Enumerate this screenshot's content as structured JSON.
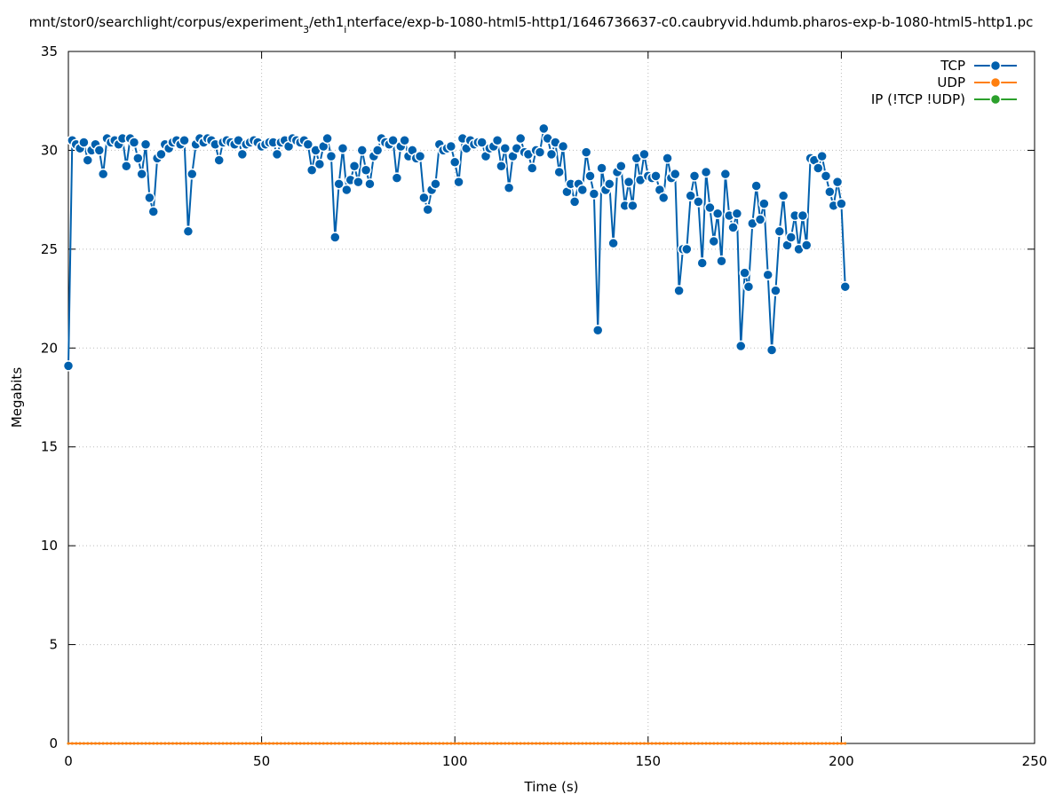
{
  "chart_data": {
    "type": "line",
    "title": [
      "mnt/stor0/searchlight/corpus/experiment",
      "3",
      "/eth1",
      "i",
      "nterface/exp-b-1080-html5-http1/1646736637-c0.caubryvid.hdumb.pharos-exp-b-1080-html5-http1.pc"
    ],
    "xlabel": "Time (s)",
    "ylabel": "Megabits",
    "xlim": [
      0,
      250
    ],
    "xticks": [
      0,
      50,
      100,
      150,
      200,
      250
    ],
    "ylim": [
      0,
      35
    ],
    "yticks": [
      0,
      5,
      10,
      15,
      20,
      25,
      30,
      35
    ],
    "grid": true,
    "legend": "top right",
    "x": [
      0,
      1,
      2,
      3,
      4,
      5,
      6,
      7,
      8,
      9,
      10,
      11,
      12,
      13,
      14,
      15,
      16,
      17,
      18,
      19,
      20,
      21,
      22,
      23,
      24,
      25,
      26,
      27,
      28,
      29,
      30,
      31,
      32,
      33,
      34,
      35,
      36,
      37,
      38,
      39,
      40,
      41,
      42,
      43,
      44,
      45,
      46,
      47,
      48,
      49,
      50,
      51,
      52,
      53,
      54,
      55,
      56,
      57,
      58,
      59,
      60,
      61,
      62,
      63,
      64,
      65,
      66,
      67,
      68,
      69,
      70,
      71,
      72,
      73,
      74,
      75,
      76,
      77,
      78,
      79,
      80,
      81,
      82,
      83,
      84,
      85,
      86,
      87,
      88,
      89,
      90,
      91,
      92,
      93,
      94,
      95,
      96,
      97,
      98,
      99,
      100,
      101,
      102,
      103,
      104,
      105,
      106,
      107,
      108,
      109,
      110,
      111,
      112,
      113,
      114,
      115,
      116,
      117,
      118,
      119,
      120,
      121,
      122,
      123,
      124,
      125,
      126,
      127,
      128,
      129,
      130,
      131,
      132,
      133,
      134,
      135,
      136,
      137,
      138,
      139,
      140,
      141,
      142,
      143,
      144,
      145,
      146,
      147,
      148,
      149,
      150,
      151,
      152,
      153,
      154,
      155,
      156,
      157,
      158,
      159,
      160,
      161,
      162,
      163,
      164,
      165,
      166,
      167,
      168,
      169,
      170,
      171,
      172,
      173,
      174,
      175,
      176,
      177,
      178,
      179,
      180,
      181,
      182,
      183,
      184,
      185,
      186,
      187,
      188,
      189,
      190,
      191,
      192,
      193,
      194,
      195,
      196,
      197,
      198,
      199,
      200,
      201
    ],
    "series": [
      {
        "name": "TCP",
        "color": "#0060ad",
        "marker_size": 5.5,
        "values": [
          19.1,
          30.5,
          30.3,
          30.1,
          30.4,
          29.5,
          30.0,
          30.3,
          30.0,
          28.8,
          30.6,
          30.4,
          30.5,
          30.3,
          30.6,
          29.2,
          30.6,
          30.4,
          29.6,
          28.8,
          30.3,
          27.6,
          26.9,
          29.6,
          29.8,
          30.3,
          30.1,
          30.4,
          30.5,
          30.3,
          30.5,
          25.9,
          28.8,
          30.3,
          30.6,
          30.4,
          30.6,
          30.5,
          30.3,
          29.5,
          30.4,
          30.5,
          30.4,
          30.3,
          30.5,
          29.8,
          30.3,
          30.4,
          30.5,
          30.4,
          30.2,
          30.3,
          30.4,
          30.4,
          29.8,
          30.4,
          30.5,
          30.2,
          30.6,
          30.5,
          30.4,
          30.5,
          30.3,
          29.0,
          30.0,
          29.3,
          30.2,
          30.6,
          29.7,
          25.6,
          28.3,
          30.1,
          28.0,
          28.5,
          29.2,
          28.4,
          30.0,
          29.0,
          28.3,
          29.7,
          30.0,
          30.6,
          30.4,
          30.3,
          30.5,
          28.6,
          30.2,
          30.5,
          29.7,
          30.0,
          29.6,
          29.7,
          27.6,
          27.0,
          28.0,
          28.3,
          30.3,
          30.0,
          30.1,
          30.2,
          29.4,
          28.4,
          30.6,
          30.1,
          30.5,
          30.3,
          30.4,
          30.4,
          29.7,
          30.1,
          30.2,
          30.5,
          29.2,
          30.1,
          28.1,
          29.7,
          30.1,
          30.6,
          29.9,
          29.8,
          29.1,
          30.0,
          29.9,
          31.1,
          30.6,
          29.8,
          30.4,
          28.9,
          30.2,
          27.9,
          28.3,
          27.4,
          28.3,
          28.0,
          29.9,
          28.7,
          27.8,
          20.9,
          29.1,
          28.0,
          28.3,
          25.3,
          28.9,
          29.2,
          27.2,
          28.4,
          27.2,
          29.6,
          28.5,
          29.8,
          28.7,
          28.6,
          28.7,
          28.0,
          27.6,
          29.6,
          28.6,
          28.8,
          22.9,
          25.0,
          25.0,
          27.7,
          28.7,
          27.4,
          24.3,
          28.9,
          27.1,
          25.4,
          26.8,
          24.4,
          28.8,
          26.7,
          26.1,
          26.8,
          20.1,
          23.8,
          23.1,
          26.3,
          28.2,
          26.5,
          27.3,
          23.7,
          19.9,
          22.9,
          25.9,
          27.7,
          25.2,
          25.6,
          26.7,
          25.0,
          26.7,
          25.2,
          29.6,
          29.5,
          29.1,
          29.7,
          28.7,
          27.9,
          27.2,
          28.4,
          27.3,
          23.1
        ]
      },
      {
        "name": "UDP",
        "color": "#ff7f0e",
        "marker_size": 1.5,
        "values": [
          0,
          0,
          0,
          0,
          0,
          0,
          0,
          0,
          0,
          0,
          0,
          0,
          0,
          0,
          0,
          0,
          0,
          0,
          0,
          0,
          0,
          0,
          0,
          0,
          0,
          0,
          0,
          0,
          0,
          0,
          0,
          0,
          0,
          0,
          0,
          0,
          0,
          0,
          0,
          0,
          0,
          0,
          0,
          0,
          0,
          0,
          0,
          0,
          0,
          0,
          0,
          0,
          0,
          0,
          0,
          0,
          0,
          0,
          0,
          0,
          0,
          0,
          0,
          0,
          0,
          0,
          0,
          0,
          0,
          0,
          0,
          0,
          0,
          0,
          0,
          0,
          0,
          0,
          0,
          0,
          0,
          0,
          0,
          0,
          0,
          0,
          0,
          0,
          0,
          0,
          0,
          0,
          0,
          0,
          0,
          0,
          0,
          0,
          0,
          0,
          0,
          0,
          0,
          0,
          0,
          0,
          0,
          0,
          0,
          0,
          0,
          0,
          0,
          0,
          0,
          0,
          0,
          0,
          0,
          0,
          0,
          0,
          0,
          0,
          0,
          0,
          0,
          0,
          0,
          0,
          0,
          0,
          0,
          0,
          0,
          0,
          0,
          0,
          0,
          0,
          0,
          0,
          0,
          0,
          0,
          0,
          0,
          0,
          0,
          0,
          0,
          0,
          0,
          0,
          0,
          0,
          0,
          0,
          0,
          0,
          0,
          0,
          0,
          0,
          0,
          0,
          0,
          0,
          0,
          0,
          0,
          0,
          0,
          0,
          0,
          0,
          0,
          0,
          0,
          0,
          0,
          0,
          0,
          0,
          0,
          0,
          0,
          0,
          0,
          0,
          0,
          0,
          0,
          0,
          0,
          0,
          0,
          0,
          0,
          0,
          0,
          0
        ]
      },
      {
        "name": "IP (!TCP  !UDP)",
        "color": "#2ca02c",
        "marker_size": 1.5,
        "values": [
          0,
          0,
          0,
          0,
          0,
          0,
          0,
          0,
          0,
          0,
          0,
          0,
          0,
          0,
          0,
          0,
          0,
          0,
          0,
          0,
          0,
          0,
          0,
          0,
          0,
          0,
          0,
          0,
          0,
          0,
          0,
          0,
          0,
          0,
          0,
          0,
          0,
          0,
          0,
          0,
          0,
          0,
          0,
          0,
          0,
          0,
          0,
          0,
          0,
          0,
          0,
          0,
          0,
          0,
          0,
          0,
          0,
          0,
          0,
          0,
          0,
          0,
          0,
          0,
          0,
          0,
          0,
          0,
          0,
          0,
          0,
          0,
          0,
          0,
          0,
          0,
          0,
          0,
          0,
          0,
          0,
          0,
          0,
          0,
          0,
          0,
          0,
          0,
          0,
          0,
          0,
          0,
          0,
          0,
          0,
          0,
          0,
          0,
          0,
          0,
          0,
          0,
          0,
          0,
          0,
          0,
          0,
          0,
          0,
          0,
          0,
          0,
          0,
          0,
          0,
          0,
          0,
          0,
          0,
          0,
          0,
          0,
          0,
          0,
          0,
          0,
          0,
          0,
          0,
          0,
          0,
          0,
          0,
          0,
          0,
          0,
          0,
          0,
          0,
          0,
          0,
          0,
          0,
          0,
          0,
          0,
          0,
          0,
          0,
          0,
          0,
          0,
          0,
          0,
          0,
          0,
          0,
          0,
          0,
          0,
          0,
          0,
          0,
          0,
          0,
          0,
          0,
          0,
          0,
          0,
          0,
          0,
          0,
          0,
          0,
          0,
          0,
          0,
          0,
          0,
          0,
          0,
          0,
          0,
          0,
          0,
          0,
          0,
          0,
          0,
          0,
          0,
          0,
          0,
          0,
          0,
          0,
          0,
          0,
          0,
          0,
          0
        ]
      }
    ]
  }
}
